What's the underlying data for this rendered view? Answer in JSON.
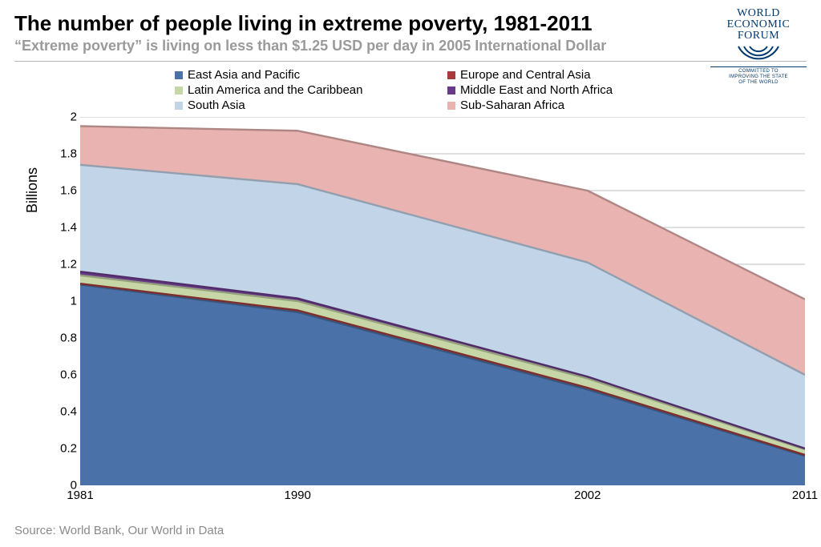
{
  "header": {
    "title": "The number of people living in extreme poverty, 1981-2011",
    "subtitle": "“Extreme poverty” is living on less than $1.25 USD per day in 2005 International Dollar",
    "logo": {
      "line1": "WORLD",
      "line2": "ECONOMIC",
      "line3": "FORUM",
      "tagline1": "COMMITTED TO",
      "tagline2": "IMPROVING THE STATE",
      "tagline3": "OF THE WORLD",
      "color": "#003a70"
    }
  },
  "source": "Source: World Bank, Our World in Data",
  "chart": {
    "type": "area-stacked",
    "y_title": "Billions",
    "background_color": "#ffffff",
    "grid_color": "#bfbfbf",
    "axis_color": "#808080",
    "label_fontsize": 15,
    "y": {
      "min": 0,
      "max": 2,
      "ticks": [
        0,
        0.2,
        0.4,
        0.6,
        0.8,
        1,
        1.2,
        1.4,
        1.6,
        1.8,
        2
      ]
    },
    "x": {
      "years": [
        1981,
        1990,
        2002,
        2011
      ],
      "min": 1981,
      "max": 2011
    },
    "series": [
      {
        "name": "East Asia and Pacific",
        "color": "#4a72a8",
        "values": [
          1.09,
          0.94,
          0.52,
          0.16
        ]
      },
      {
        "name": "Europe and Central Asia",
        "color": "#a83a3a",
        "values": [
          0.005,
          0.01,
          0.01,
          0.005
        ]
      },
      {
        "name": "Latin America and the Caribbean",
        "color": "#c7d6a7",
        "values": [
          0.045,
          0.05,
          0.05,
          0.03
        ]
      },
      {
        "name": "Middle East and North Africa",
        "color": "#6a3a8a",
        "values": [
          0.02,
          0.015,
          0.01,
          0.005
        ]
      },
      {
        "name": "South Asia",
        "color": "#c1d4e8",
        "values": [
          0.58,
          0.62,
          0.62,
          0.4
        ]
      },
      {
        "name": "Sub-Saharan Africa",
        "color": "#e8b3b0",
        "values": [
          0.21,
          0.29,
          0.39,
          0.41
        ]
      }
    ],
    "legend_order": [
      0,
      1,
      2,
      3,
      4,
      5
    ],
    "stack_order": [
      0,
      1,
      2,
      3,
      4,
      5
    ],
    "line_border_color": "#7a7a7a",
    "line_border_width": 1.2
  }
}
